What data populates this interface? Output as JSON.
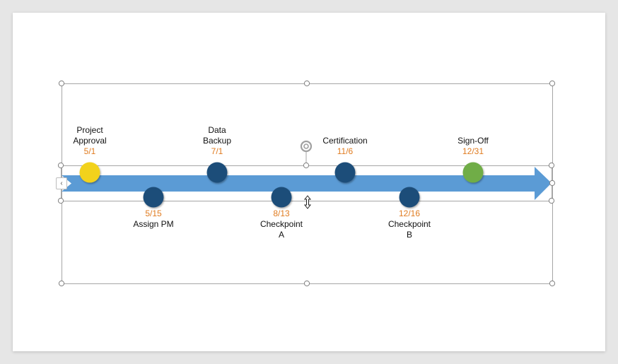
{
  "colors": {
    "arrow": "#5b9bd5",
    "marker_dark": "#1f4e79",
    "marker_start": "#f2d21a",
    "marker_end": "#70ad47",
    "date_text": "#e07b1f",
    "selection": "#a6a6a6"
  },
  "milestones": [
    {
      "label": "Project\nApproval",
      "date": "5/1",
      "position": "above",
      "color": "start"
    },
    {
      "label": "Assign PM",
      "date": "5/15",
      "position": "below",
      "color": "dark"
    },
    {
      "label": "Data\nBackup",
      "date": "7/1",
      "position": "above",
      "color": "dark"
    },
    {
      "label": "Checkpoint\nA",
      "date": "8/13",
      "position": "below",
      "color": "dark"
    },
    {
      "label": "Certification",
      "date": "11/6",
      "position": "above",
      "color": "dark"
    },
    {
      "label": "Checkpoint\nB",
      "date": "12/16",
      "position": "below",
      "color": "dark"
    },
    {
      "label": "Sign-Off",
      "date": "12/31",
      "position": "above",
      "color": "end"
    }
  ],
  "icons": {
    "rotate": "rotate-handle-icon",
    "resize": "resize-cursor-icon",
    "collapse": "chevron-left-icon"
  }
}
